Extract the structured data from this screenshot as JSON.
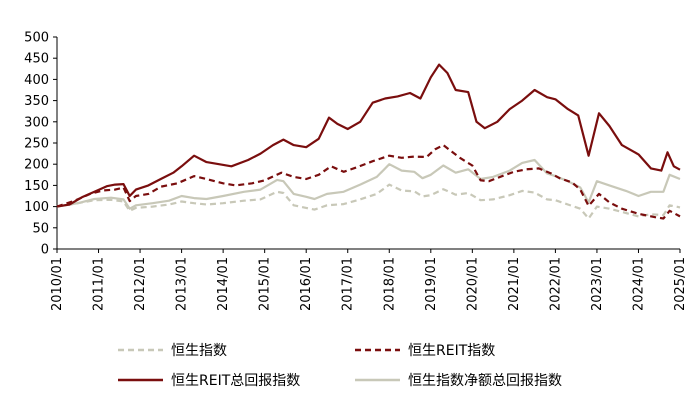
{
  "chart_data": {
    "type": "line",
    "title": "",
    "xlabel": "",
    "ylabel": "",
    "ylim": [
      0,
      500
    ],
    "yticks": [
      0,
      50,
      100,
      150,
      200,
      250,
      300,
      350,
      400,
      450,
      500
    ],
    "xlim": [
      2010.0,
      2025.0
    ],
    "xtick_labels": [
      "2010/01",
      "2011/01",
      "2012/01",
      "2013/01",
      "2014/01",
      "2015/01",
      "2016/01",
      "2017/01",
      "2018/01",
      "2019/01",
      "2020/01",
      "2021/01",
      "2022/01",
      "2023/01",
      "2024/01",
      "2025/01"
    ],
    "grid": false,
    "legend_position": "bottom",
    "series": [
      {
        "name": "恒生指数",
        "color": "#c8c8b8",
        "style": "dashed",
        "points": [
          [
            2010.0,
            100
          ],
          [
            2010.5,
            108
          ],
          [
            2010.9,
            115
          ],
          [
            2011.3,
            116
          ],
          [
            2011.6,
            112
          ],
          [
            2011.75,
            90
          ],
          [
            2011.9,
            97
          ],
          [
            2012.3,
            100
          ],
          [
            2012.7,
            105
          ],
          [
            2013.0,
            112
          ],
          [
            2013.3,
            108
          ],
          [
            2013.6,
            105
          ],
          [
            2014.0,
            108
          ],
          [
            2014.5,
            114
          ],
          [
            2014.9,
            117
          ],
          [
            2015.3,
            135
          ],
          [
            2015.45,
            132
          ],
          [
            2015.7,
            103
          ],
          [
            2016.0,
            97
          ],
          [
            2016.2,
            93
          ],
          [
            2016.5,
            103
          ],
          [
            2016.9,
            106
          ],
          [
            2017.3,
            117
          ],
          [
            2017.7,
            130
          ],
          [
            2018.0,
            152
          ],
          [
            2018.3,
            138
          ],
          [
            2018.6,
            136
          ],
          [
            2018.8,
            124
          ],
          [
            2019.0,
            127
          ],
          [
            2019.3,
            141
          ],
          [
            2019.6,
            128
          ],
          [
            2019.9,
            132
          ],
          [
            2020.2,
            115
          ],
          [
            2020.5,
            117
          ],
          [
            2020.9,
            127
          ],
          [
            2021.2,
            137
          ],
          [
            2021.5,
            133
          ],
          [
            2021.8,
            117
          ],
          [
            2022.0,
            115
          ],
          [
            2022.3,
            105
          ],
          [
            2022.6,
            95
          ],
          [
            2022.8,
            72
          ],
          [
            2023.0,
            100
          ],
          [
            2023.3,
            95
          ],
          [
            2023.7,
            85
          ],
          [
            2024.0,
            77
          ],
          [
            2024.3,
            82
          ],
          [
            2024.6,
            80
          ],
          [
            2024.75,
            103
          ],
          [
            2025.0,
            98
          ]
        ]
      },
      {
        "name": "恒生REIT指数",
        "color": "#7a0e0e",
        "style": "dashed",
        "points": [
          [
            2010.0,
            100
          ],
          [
            2010.4,
            113
          ],
          [
            2010.8,
            130
          ],
          [
            2011.1,
            138
          ],
          [
            2011.4,
            140
          ],
          [
            2011.6,
            145
          ],
          [
            2011.75,
            113
          ],
          [
            2011.9,
            125
          ],
          [
            2012.2,
            130
          ],
          [
            2012.5,
            147
          ],
          [
            2012.9,
            155
          ],
          [
            2013.3,
            172
          ],
          [
            2013.6,
            165
          ],
          [
            2014.0,
            155
          ],
          [
            2014.3,
            150
          ],
          [
            2014.7,
            155
          ],
          [
            2015.0,
            162
          ],
          [
            2015.4,
            180
          ],
          [
            2015.7,
            170
          ],
          [
            2016.0,
            165
          ],
          [
            2016.3,
            175
          ],
          [
            2016.6,
            195
          ],
          [
            2016.9,
            182
          ],
          [
            2017.2,
            192
          ],
          [
            2017.6,
            207
          ],
          [
            2018.0,
            220
          ],
          [
            2018.3,
            215
          ],
          [
            2018.6,
            218
          ],
          [
            2018.9,
            217
          ],
          [
            2019.1,
            235
          ],
          [
            2019.3,
            245
          ],
          [
            2019.5,
            230
          ],
          [
            2019.7,
            215
          ],
          [
            2020.0,
            197
          ],
          [
            2020.2,
            162
          ],
          [
            2020.4,
            160
          ],
          [
            2020.8,
            175
          ],
          [
            2021.0,
            182
          ],
          [
            2021.3,
            188
          ],
          [
            2021.6,
            190
          ],
          [
            2021.9,
            178
          ],
          [
            2022.1,
            167
          ],
          [
            2022.4,
            157
          ],
          [
            2022.6,
            140
          ],
          [
            2022.8,
            102
          ],
          [
            2023.05,
            130
          ],
          [
            2023.3,
            110
          ],
          [
            2023.6,
            95
          ],
          [
            2024.0,
            83
          ],
          [
            2024.4,
            75
          ],
          [
            2024.6,
            72
          ],
          [
            2024.75,
            90
          ],
          [
            2025.0,
            77
          ]
        ]
      },
      {
        "name": "恒生REIT总回报指数",
        "color": "#7a0e0e",
        "style": "solid",
        "points": [
          [
            2010.0,
            100
          ],
          [
            2010.3,
            105
          ],
          [
            2010.6,
            122
          ],
          [
            2010.9,
            135
          ],
          [
            2011.2,
            148
          ],
          [
            2011.4,
            152
          ],
          [
            2011.6,
            153
          ],
          [
            2011.75,
            125
          ],
          [
            2011.9,
            140
          ],
          [
            2012.2,
            150
          ],
          [
            2012.5,
            165
          ],
          [
            2012.8,
            180
          ],
          [
            2013.0,
            195
          ],
          [
            2013.3,
            220
          ],
          [
            2013.6,
            205
          ],
          [
            2013.9,
            200
          ],
          [
            2014.2,
            195
          ],
          [
            2014.6,
            210
          ],
          [
            2014.9,
            225
          ],
          [
            2015.2,
            245
          ],
          [
            2015.45,
            258
          ],
          [
            2015.7,
            245
          ],
          [
            2016.0,
            240
          ],
          [
            2016.3,
            260
          ],
          [
            2016.55,
            310
          ],
          [
            2016.75,
            295
          ],
          [
            2017.0,
            283
          ],
          [
            2017.3,
            300
          ],
          [
            2017.6,
            345
          ],
          [
            2017.9,
            355
          ],
          [
            2018.2,
            360
          ],
          [
            2018.5,
            368
          ],
          [
            2018.75,
            355
          ],
          [
            2019.0,
            405
          ],
          [
            2019.2,
            435
          ],
          [
            2019.4,
            415
          ],
          [
            2019.6,
            375
          ],
          [
            2019.9,
            370
          ],
          [
            2020.1,
            300
          ],
          [
            2020.3,
            285
          ],
          [
            2020.6,
            300
          ],
          [
            2020.9,
            330
          ],
          [
            2021.2,
            350
          ],
          [
            2021.5,
            375
          ],
          [
            2021.8,
            358
          ],
          [
            2022.0,
            353
          ],
          [
            2022.3,
            330
          ],
          [
            2022.55,
            315
          ],
          [
            2022.8,
            220
          ],
          [
            2023.05,
            320
          ],
          [
            2023.3,
            290
          ],
          [
            2023.6,
            245
          ],
          [
            2024.0,
            223
          ],
          [
            2024.3,
            190
          ],
          [
            2024.55,
            185
          ],
          [
            2024.7,
            228
          ],
          [
            2024.85,
            195
          ],
          [
            2025.0,
            187
          ]
        ]
      },
      {
        "name": "恒生指数净额总回报指数",
        "color": "#c8c8b8",
        "style": "solid",
        "points": [
          [
            2010.0,
            100
          ],
          [
            2010.5,
            108
          ],
          [
            2010.9,
            118
          ],
          [
            2011.3,
            121
          ],
          [
            2011.6,
            117
          ],
          [
            2011.75,
            95
          ],
          [
            2011.9,
            103
          ],
          [
            2012.3,
            108
          ],
          [
            2012.7,
            114
          ],
          [
            2013.0,
            125
          ],
          [
            2013.3,
            120
          ],
          [
            2013.6,
            118
          ],
          [
            2014.0,
            125
          ],
          [
            2014.5,
            135
          ],
          [
            2014.9,
            140
          ],
          [
            2015.3,
            163
          ],
          [
            2015.45,
            160
          ],
          [
            2015.7,
            130
          ],
          [
            2016.0,
            123
          ],
          [
            2016.2,
            118
          ],
          [
            2016.5,
            130
          ],
          [
            2016.9,
            135
          ],
          [
            2017.3,
            152
          ],
          [
            2017.7,
            170
          ],
          [
            2018.0,
            200
          ],
          [
            2018.3,
            185
          ],
          [
            2018.6,
            182
          ],
          [
            2018.8,
            167
          ],
          [
            2019.0,
            175
          ],
          [
            2019.3,
            197
          ],
          [
            2019.6,
            180
          ],
          [
            2019.9,
            188
          ],
          [
            2020.2,
            165
          ],
          [
            2020.5,
            170
          ],
          [
            2020.9,
            185
          ],
          [
            2021.2,
            203
          ],
          [
            2021.5,
            210
          ],
          [
            2021.8,
            178
          ],
          [
            2022.0,
            172
          ],
          [
            2022.3,
            160
          ],
          [
            2022.6,
            145
          ],
          [
            2022.8,
            110
          ],
          [
            2023.0,
            160
          ],
          [
            2023.3,
            150
          ],
          [
            2023.7,
            137
          ],
          [
            2024.0,
            125
          ],
          [
            2024.3,
            135
          ],
          [
            2024.6,
            135
          ],
          [
            2024.75,
            175
          ],
          [
            2025.0,
            165
          ]
        ]
      }
    ]
  }
}
